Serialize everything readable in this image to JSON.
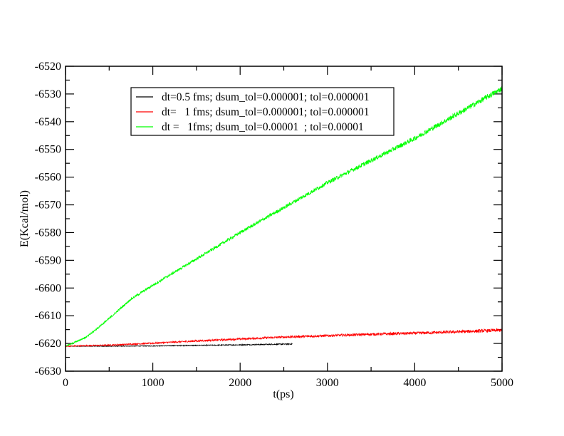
{
  "chart_data": {
    "type": "line",
    "title": "",
    "xlabel": "t(ps)",
    "ylabel": "E(Kcal/mol)",
    "xlim": [
      0,
      5000
    ],
    "ylim": [
      -6630,
      -6520
    ],
    "xticks": [
      0,
      1000,
      2000,
      3000,
      4000,
      5000
    ],
    "yticks": [
      -6630,
      -6620,
      -6610,
      -6600,
      -6590,
      -6580,
      -6570,
      -6560,
      -6550,
      -6540,
      -6530,
      -6520
    ],
    "x_minor_step": 500,
    "y_minor_step": 5,
    "grid": false,
    "legend_position": "top-left-inside",
    "series": [
      {
        "name": "dt=0.5 fms; dsum_tol=0.000001; tol=0.000001",
        "color": "#000000",
        "noise": 0.3,
        "x": [
          0,
          500,
          1000,
          1500,
          2000,
          2600
        ],
        "y": [
          -6621,
          -6621,
          -6620.9,
          -6620.7,
          -6620.5,
          -6620.2
        ]
      },
      {
        "name": "dt=   1 fms; dsum_tol=0.000001; tol=0.000001",
        "color": "#ff0000",
        "noise": 0.6,
        "x": [
          0,
          500,
          1000,
          1500,
          2000,
          2500,
          3000,
          3500,
          4000,
          4500,
          5000
        ],
        "y": [
          -6621,
          -6620.6,
          -6619.9,
          -6619.1,
          -6618.4,
          -6617.7,
          -6617.2,
          -6616.7,
          -6616.3,
          -6615.8,
          -6615.2
        ]
      },
      {
        "name": "dt =   1fms; dsum_tol=0.00001  ; tol=0.00001",
        "color": "#00ff00",
        "noise": 1.0,
        "x": [
          0,
          250,
          500,
          750,
          1000,
          1500,
          2000,
          2500,
          3000,
          3500,
          4000,
          4500,
          5000
        ],
        "y": [
          -6621,
          -6617.5,
          -6611,
          -6604,
          -6599,
          -6589.5,
          -6580,
          -6571,
          -6562,
          -6554,
          -6546,
          -6537,
          -6528
        ]
      }
    ]
  }
}
